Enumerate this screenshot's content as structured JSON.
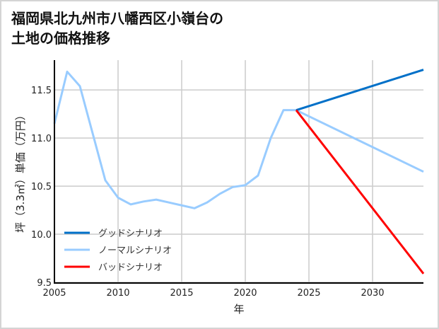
{
  "chart_data": {
    "type": "line",
    "title": "福岡県北九州市八幡西区小嶺台の\n土地の価格推移",
    "xlabel": "年",
    "ylabel": "坪（3.3㎡）単価（万円）",
    "xlim": [
      2005,
      2034
    ],
    "ylim": [
      9.5,
      11.81
    ],
    "xticks": [
      2005,
      2010,
      2015,
      2020,
      2025,
      2030
    ],
    "yticks": [
      9.5,
      10.0,
      10.5,
      11.0,
      11.5
    ],
    "ytick_labels": [
      "9.5",
      "10.0",
      "10.5",
      "11.0",
      "11.5"
    ],
    "grid": true,
    "legend_position": "lower-left",
    "series": [
      {
        "name": "グッドシナリオ",
        "color": "#0070c8",
        "x": [
          2024,
          2034
        ],
        "y": [
          11.29,
          11.71
        ]
      },
      {
        "name": "ノーマルシナリオ",
        "color": "#99ccff",
        "x": [
          2005,
          2006,
          2007,
          2008,
          2009,
          2010,
          2011,
          2012,
          2013,
          2014,
          2015,
          2016,
          2017,
          2018,
          2019,
          2020,
          2021,
          2022,
          2023,
          2024,
          2034
        ],
        "y": [
          11.15,
          11.69,
          11.54,
          11.05,
          10.56,
          10.38,
          10.31,
          10.34,
          10.36,
          10.33,
          10.3,
          10.27,
          10.33,
          10.42,
          10.49,
          10.51,
          10.61,
          11.0,
          11.29,
          11.29,
          10.65
        ]
      },
      {
        "name": "バッドシナリオ",
        "color": "#ff0000",
        "x": [
          2024,
          2034
        ],
        "y": [
          11.29,
          9.59
        ]
      }
    ]
  }
}
